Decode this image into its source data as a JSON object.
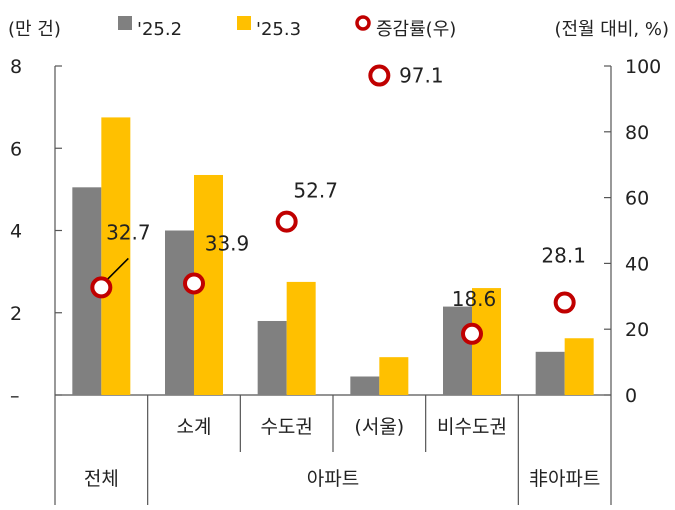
{
  "chart_data": {
    "type": "bar",
    "left_unit": "(만 건)",
    "right_unit": "(전월 대비, %)",
    "left_axis": {
      "min": 0,
      "max": 8,
      "ticks": [
        8,
        6,
        4,
        2,
        0
      ],
      "tick_labels": [
        "8",
        "6",
        "4",
        "2",
        "–"
      ]
    },
    "right_axis": {
      "min": 0,
      "max": 100,
      "ticks": [
        100,
        80,
        60,
        40,
        20,
        0
      ],
      "tick_labels": [
        "100",
        "80",
        "60",
        "40",
        "20",
        "0"
      ]
    },
    "categories": [
      "전체",
      "소계",
      "수도권",
      "(서울)",
      "비수도권",
      "非아파트"
    ],
    "subcategory_labels": [
      "",
      "소계",
      "수도권",
      "(서울)",
      "비수도권",
      ""
    ],
    "group_labels": [
      {
        "label": "전체",
        "from": 0,
        "to": 0
      },
      {
        "label": "아파트",
        "from": 1,
        "to": 4
      },
      {
        "label": "非아파트",
        "from": 5,
        "to": 5
      }
    ],
    "series": [
      {
        "name": "'25.2",
        "type": "bar",
        "axis": "left",
        "color": "#808080",
        "values": [
          5.05,
          4.0,
          1.8,
          0.45,
          2.15,
          1.05
        ]
      },
      {
        "name": "'25.3",
        "type": "bar",
        "axis": "left",
        "color": "#ffc000",
        "values": [
          6.75,
          5.35,
          2.75,
          0.92,
          2.6,
          1.38
        ]
      },
      {
        "name": "증감률(우)",
        "type": "scatter",
        "axis": "right",
        "color": "#c00000",
        "values": [
          32.7,
          33.9,
          52.7,
          97.1,
          18.6,
          28.1
        ],
        "labels": [
          "32.7",
          "33.9",
          "52.7",
          "97.1",
          "18.6",
          "28.1"
        ]
      }
    ]
  }
}
